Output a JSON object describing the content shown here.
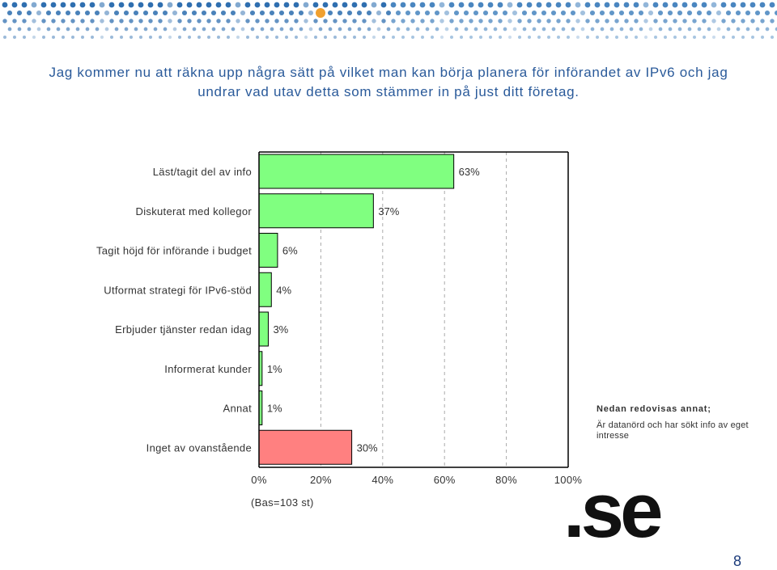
{
  "heading": "Jag kommer nu att räkna upp några sätt på vilket man kan börja planera för införandet av IPv6 och jag undrar vad utav detta som stämmer in på just ditt företag.",
  "chart_data": {
    "type": "bar",
    "orientation": "horizontal",
    "categories": [
      "Läst/tagit del av info",
      "Diskuterat med kollegor",
      "Tagit höjd för införande i budget",
      "Utformat strategi för IPv6-stöd",
      "Erbjuder tjänster redan idag",
      "Informerat kunder",
      "Annat",
      "Inget av ovanstående"
    ],
    "values": [
      63,
      37,
      6,
      4,
      3,
      1,
      1,
      30
    ],
    "value_labels": [
      "63%",
      "37%",
      "6%",
      "4%",
      "3%",
      "1%",
      "1%",
      "30%"
    ],
    "xlim": [
      0,
      100
    ],
    "ticks": [
      "0%",
      "20%",
      "40%",
      "60%",
      "80%",
      "100%"
    ],
    "tick_values": [
      0,
      20,
      40,
      60,
      80,
      100
    ],
    "base_label": "(Bas=103 st)",
    "colors": {
      "bar": "#80ff80",
      "highlight": "#ff8080",
      "gridline": "#aaaaaa"
    },
    "highlight_index": 7,
    "grid": true
  },
  "note": {
    "title": "Nedan redovisas annat;",
    "text": "Är datanörd och har sökt info av eget intresse"
  },
  "logo_text": ".se",
  "page_number": "8"
}
